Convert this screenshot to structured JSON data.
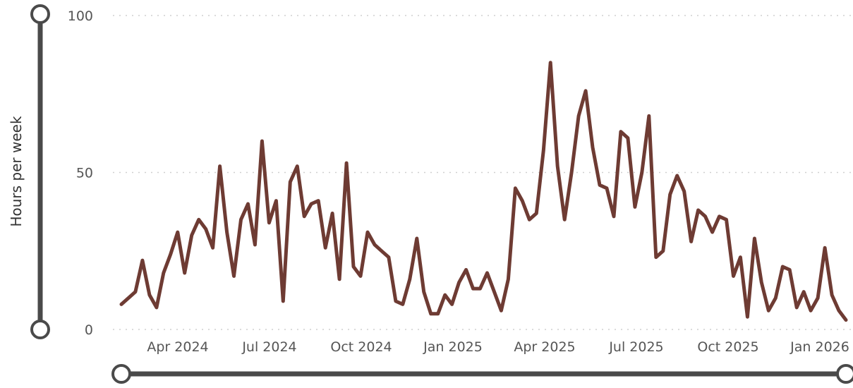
{
  "chart_data": {
    "type": "line",
    "ylabel": "Hours per week",
    "xlabel": "",
    "title": "",
    "ylim": [
      0,
      100
    ],
    "yticks": [
      0,
      50,
      100
    ],
    "grid": true,
    "xticks": [
      "Apr 2024",
      "Jul 2024",
      "Oct 2024",
      "Jan 2025",
      "Apr 2025",
      "Jul 2025",
      "Oct 2025",
      "Jan 2026"
    ],
    "line_color": "#6e3b33",
    "x_start": "2024-01-15",
    "x_step": "1 week",
    "series": [
      {
        "values": [
          8,
          10,
          12,
          22,
          11,
          7,
          18,
          24,
          31,
          18,
          30,
          35,
          32,
          26,
          52,
          31,
          17,
          35,
          40,
          27,
          60,
          34,
          41,
          9,
          47,
          52,
          36,
          40,
          41,
          26,
          37,
          16,
          53,
          20,
          17,
          31,
          27,
          25,
          23,
          9,
          8,
          16,
          29,
          12,
          5,
          5,
          11,
          8,
          15,
          19,
          13,
          13,
          18,
          12,
          6,
          16,
          45,
          41,
          35,
          37,
          57,
          85,
          52,
          35,
          50,
          68,
          76,
          58,
          46,
          45,
          36,
          63,
          61,
          39,
          50,
          68,
          23,
          25,
          43,
          49,
          44,
          28,
          38,
          36,
          31,
          36,
          35,
          17,
          23,
          4,
          29,
          15,
          6,
          10,
          20,
          19,
          7,
          12,
          6,
          10,
          26,
          11,
          6,
          3
        ]
      }
    ]
  },
  "range_slider": {
    "vertical": {
      "from": 0,
      "to": 100
    },
    "horizontal": {
      "from": "2024-01-15",
      "to": "2026-01-26"
    }
  }
}
